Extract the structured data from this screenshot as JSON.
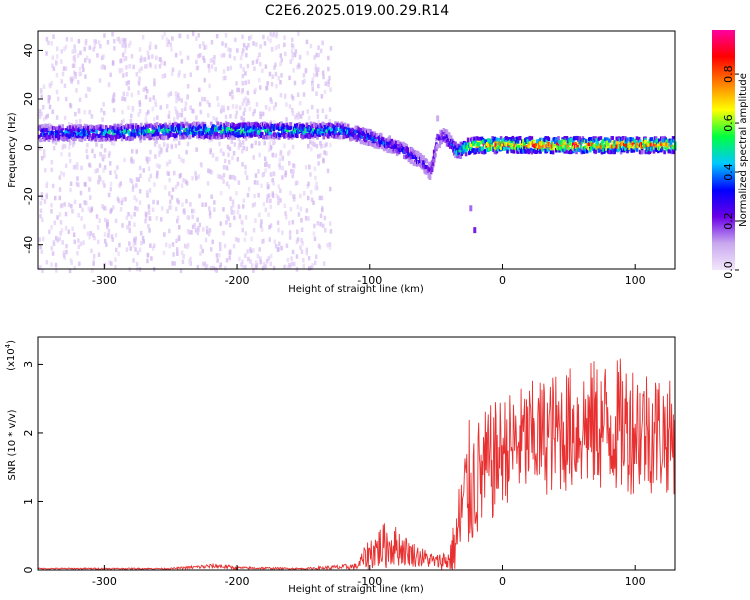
{
  "figure": {
    "title": "C2E6.2025.019.00.29.R14"
  },
  "chart_data": [
    {
      "type": "heatmap",
      "xlabel": "Height of straight line (km)",
      "ylabel": "Frequency (Hz)",
      "xlim": [
        -350,
        130
      ],
      "ylim": [
        -50,
        48
      ],
      "xticks": [
        -300,
        -200,
        -100,
        0,
        100
      ],
      "yticks": [
        -40,
        -20,
        0,
        20,
        40
      ],
      "colorbar": {
        "label": "Normalized spectral amplitude",
        "range": [
          0.0,
          0.98
        ],
        "ticks": [
          0.0,
          0.2,
          0.4,
          0.6,
          0.8
        ],
        "colors": [
          "#f2e6fa",
          "#c9a8ef",
          "#6a00e6",
          "#0000ff",
          "#00c8ff",
          "#00ff40",
          "#ffff00",
          "#ff7f00",
          "#ff0000",
          "#ff00a0"
        ]
      },
      "ridge": {
        "x": [
          -350,
          -300,
          -250,
          -200,
          -150,
          -120,
          -100,
          -80,
          -70,
          -60,
          -55,
          -50,
          -45,
          -40,
          -35,
          -30,
          -20,
          0,
          50,
          100,
          130
        ],
        "y": [
          6,
          6,
          7,
          7,
          7,
          7,
          4,
          0,
          -3,
          -7,
          -10,
          3,
          5,
          2,
          -2,
          0,
          1,
          1,
          1,
          1,
          1
        ],
        "amplitude": [
          0.4,
          0.45,
          0.5,
          0.55,
          0.5,
          0.45,
          0.4,
          0.35,
          0.35,
          0.3,
          0.3,
          0.3,
          0.3,
          0.35,
          0.5,
          0.6,
          0.8,
          0.85,
          0.9,
          0.85,
          0.8
        ]
      },
      "scatter_band": {
        "x_range": [
          -350,
          -130
        ],
        "y_range": [
          -50,
          48
        ],
        "typical_amplitude": 0.05
      },
      "outliers": [
        {
          "x": -25,
          "y": -25,
          "amplitude": 0.15
        },
        {
          "x": -22,
          "y": -34,
          "amplitude": 0.2
        },
        {
          "x": -50,
          "y": 12,
          "amplitude": 0.1
        }
      ]
    },
    {
      "type": "line",
      "xlabel": "Height of straight line (km)",
      "ylabel": "SNR (10 * v/v)",
      "scale_note": "(x10",
      "scale_exponent": "4",
      "xlim": [
        -350,
        130
      ],
      "ylim": [
        0,
        3.4
      ],
      "xticks": [
        -300,
        -200,
        -100,
        0,
        100
      ],
      "yticks": [
        0,
        1,
        2,
        3
      ],
      "color": "#e83030",
      "envelope": {
        "x": [
          -350,
          -250,
          -215,
          -200,
          -150,
          -110,
          -100,
          -90,
          -80,
          -70,
          -60,
          -50,
          -40,
          -35,
          -30,
          -25,
          -20,
          -10,
          0,
          20,
          40,
          60,
          80,
          100,
          120,
          130
        ],
        "mean": [
          0.02,
          0.02,
          0.06,
          0.03,
          0.02,
          0.05,
          0.25,
          0.35,
          0.35,
          0.25,
          0.18,
          0.12,
          0.15,
          0.4,
          0.9,
          1.2,
          1.3,
          1.5,
          1.75,
          1.9,
          2.0,
          2.1,
          2.1,
          2.1,
          2.0,
          1.9
        ],
        "spread": [
          0.01,
          0.01,
          0.04,
          0.02,
          0.01,
          0.05,
          0.25,
          0.35,
          0.3,
          0.2,
          0.15,
          0.1,
          0.2,
          0.5,
          0.9,
          1.0,
          0.9,
          0.9,
          0.8,
          0.85,
          0.9,
          0.95,
          1.0,
          1.0,
          0.9,
          0.8
        ]
      }
    }
  ]
}
